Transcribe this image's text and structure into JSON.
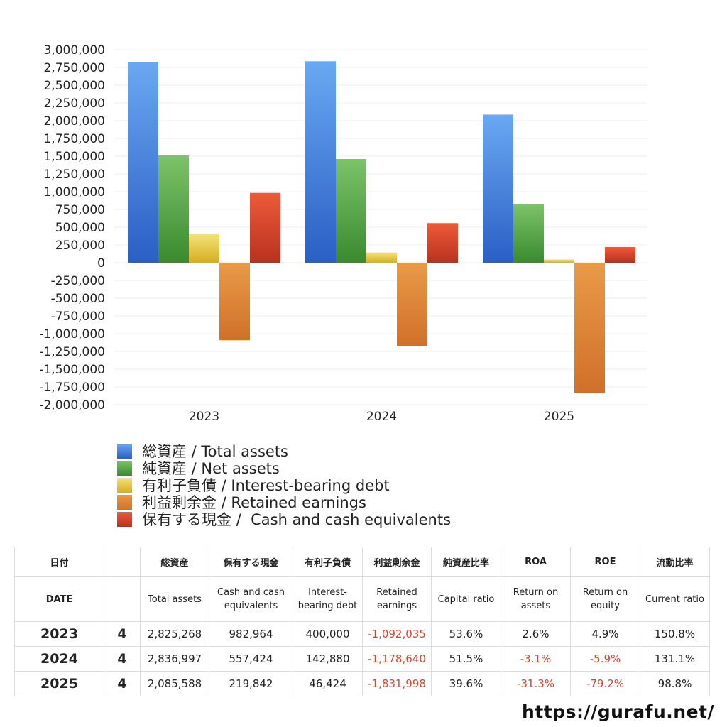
{
  "chart_data": {
    "type": "bar",
    "categories": [
      "2023",
      "2024",
      "2025"
    ],
    "ylim": [
      -2000000,
      3000000
    ],
    "ytick_step": 250000,
    "yticks": [
      "3,000,000",
      "2,750,000",
      "2,500,000",
      "2,250,000",
      "2,000,000",
      "1,750,000",
      "1,500,000",
      "1,250,000",
      "1,000,000",
      "750,000",
      "500,000",
      "250,000",
      "0",
      "-250,000",
      "-500,000",
      "-750,000",
      "-1,000,000",
      "-1,250,000",
      "-1,500,000",
      "-1,750,000",
      "-2,000,000"
    ],
    "grid": true,
    "legend_position": "bottom-left",
    "series": [
      {
        "name": "総資産 / Total assets",
        "values": [
          2825268,
          2836997,
          2085588
        ],
        "color_top": "#6aa8f2",
        "color_bottom": "#2a5fc4"
      },
      {
        "name": "純資産 / Net assets",
        "values": [
          1510000,
          1460000,
          826000
        ],
        "color_top": "#7cc36a",
        "color_bottom": "#3a8a2e"
      },
      {
        "name": "有利子負債 / Interest-bearing debt",
        "values": [
          400000,
          142880,
          46424
        ],
        "color_top": "#f5e27a",
        "color_bottom": "#d4ae1e"
      },
      {
        "name": "利益剰余金 / Retained earnings",
        "values": [
          -1092035,
          -1178640,
          -1831998
        ],
        "color_top": "#e99a47",
        "color_bottom": "#d0702a"
      },
      {
        "name": "保有する現金 /  Cash and cash equivalents",
        "values": [
          982964,
          557424,
          219842
        ],
        "color_top": "#ee5a3a",
        "color_bottom": "#b8321e"
      }
    ]
  },
  "table": {
    "header_jp": [
      "日付",
      "",
      "総資産",
      "保有する現金",
      "有利子負債",
      "利益剰余金",
      "純資産比率",
      "ROA",
      "ROE",
      "流動比率"
    ],
    "header_en": [
      "DATE",
      "",
      "Total assets",
      "Cash and cash equivalents",
      "Interest-bearing debt",
      "Retained earnings",
      "Capital ratio",
      "Return on assets",
      "Return on equity",
      "Current ratio"
    ],
    "rows": [
      {
        "year": "2023",
        "q": "4",
        "total_assets": "2,825,268",
        "cash": "982,964",
        "debt": "400,000",
        "retained": "-1,092,035",
        "capital_ratio": "53.6%",
        "roa": "2.6%",
        "roe": "4.9%",
        "current_ratio": "150.8%"
      },
      {
        "year": "2024",
        "q": "4",
        "total_assets": "2,836,997",
        "cash": "557,424",
        "debt": "142,880",
        "retained": "-1,178,640",
        "capital_ratio": "51.5%",
        "roa": "-3.1%",
        "roe": "-5.9%",
        "current_ratio": "131.1%"
      },
      {
        "year": "2025",
        "q": "4",
        "total_assets": "2,085,588",
        "cash": "219,842",
        "debt": "46,424",
        "retained": "-1,831,998",
        "capital_ratio": "39.6%",
        "roa": "-31.3%",
        "roe": "-79.2%",
        "current_ratio": "98.8%"
      }
    ]
  },
  "footer": {
    "site": "https://gurafu.net/"
  }
}
